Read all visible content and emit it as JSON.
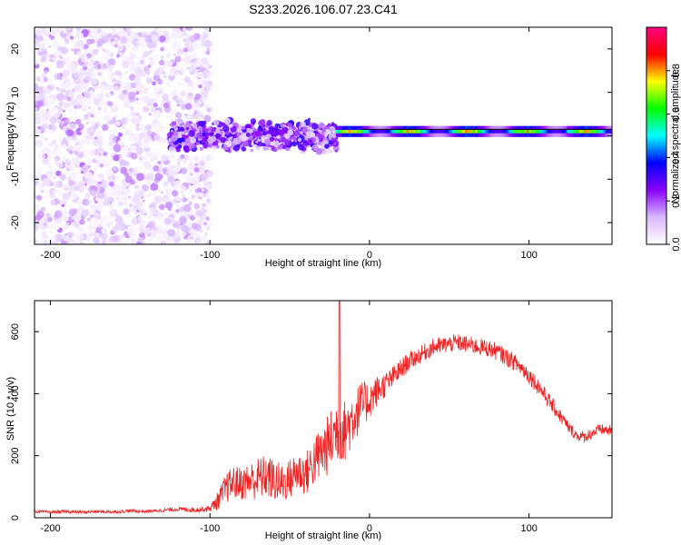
{
  "title": "S233.2026.106.07.23.C41",
  "chart_data": [
    {
      "type": "heatmap",
      "name": "spectrogram",
      "xlabel": "Height of straight line (km)",
      "ylabel": "Frequency (Hz)",
      "xlim": [
        -210,
        152
      ],
      "ylim": [
        -25,
        25
      ],
      "xticks": [
        -200,
        -100,
        0,
        100
      ],
      "yticks": [
        -20,
        -10,
        0,
        10,
        20
      ],
      "colorbar": {
        "label": "Normalized spectral amplitude",
        "range": [
          0.0,
          1.0
        ],
        "ticks": [
          0.0,
          0.2,
          0.4,
          0.6,
          0.8
        ],
        "tick_labels": [
          "0.0",
          "0.2",
          "0.4",
          "0.6",
          "0.8"
        ],
        "colormap": [
          "#ffffff",
          "#d9b8ff",
          "#8b00ff",
          "#0000ff",
          "#00ffff",
          "#00ff00",
          "#ffff00",
          "#ff0000",
          "#ff0080"
        ]
      },
      "features": [
        {
          "description": "scattered noise speckle",
          "x_range": [
            -210,
            -100
          ],
          "freq_range": [
            -25,
            25
          ],
          "amplitude_range": [
            0.0,
            0.1
          ]
        },
        {
          "description": "speckle plus signal onset",
          "x_range": [
            -125,
            -20
          ],
          "freq_range": [
            -7,
            6
          ],
          "amplitude_range": [
            0.05,
            0.35
          ]
        },
        {
          "description": "narrow ridge",
          "x_range": [
            -20,
            152
          ],
          "freq_center": 1.0,
          "freq_halfwidth": 1.0,
          "amplitude_range": [
            0.3,
            0.85
          ]
        }
      ],
      "reference_line": {
        "x_range": [
          -5,
          152
        ],
        "freq": 1.5
      }
    },
    {
      "type": "line",
      "name": "snr",
      "xlabel": "Height of straight line (km)",
      "ylabel": "SNR (10 * v/v)",
      "xlim": [
        -210,
        152
      ],
      "ylim": [
        0,
        700
      ],
      "xticks": [
        -200,
        -100,
        0,
        100
      ],
      "yticks": [
        0,
        200,
        400,
        600
      ],
      "color": "#ee2222",
      "series": [
        {
          "name": "SNR",
          "x": [
            -210,
            -200,
            -190,
            -180,
            -170,
            -160,
            -150,
            -140,
            -130,
            -120,
            -110,
            -100,
            -95,
            -90,
            -85,
            -80,
            -75,
            -70,
            -65,
            -60,
            -55,
            -50,
            -45,
            -40,
            -35,
            -30,
            -25,
            -20,
            -15,
            -10,
            -5,
            0,
            5,
            10,
            15,
            20,
            25,
            30,
            35,
            40,
            45,
            50,
            55,
            60,
            65,
            70,
            75,
            80,
            85,
            90,
            95,
            100,
            105,
            110,
            115,
            120,
            125,
            130,
            135,
            140,
            145,
            152
          ],
          "y": [
            20,
            18,
            20,
            18,
            20,
            19,
            22,
            20,
            24,
            28,
            25,
            30,
            55,
            95,
            115,
            110,
            120,
            125,
            135,
            120,
            110,
            125,
            150,
            140,
            180,
            210,
            240,
            290,
            280,
            330,
            360,
            380,
            410,
            430,
            455,
            480,
            505,
            520,
            535,
            550,
            555,
            560,
            565,
            560,
            555,
            550,
            545,
            535,
            520,
            505,
            485,
            460,
            430,
            395,
            360,
            325,
            290,
            265,
            260,
            275,
            285,
            280
          ],
          "noise": [
            5,
            5,
            5,
            5,
            5,
            5,
            5,
            5,
            6,
            7,
            8,
            10,
            30,
            50,
            55,
            55,
            60,
            70,
            70,
            70,
            65,
            65,
            70,
            70,
            80,
            90,
            100,
            110,
            100,
            90,
            80,
            60,
            50,
            40,
            35,
            35,
            30,
            28,
            28,
            28,
            28,
            28,
            28,
            28,
            28,
            28,
            28,
            28,
            28,
            28,
            28,
            28,
            28,
            25,
            25,
            22,
            20,
            18,
            18,
            18,
            18,
            18
          ]
        }
      ],
      "annotations": [
        {
          "x": -19,
          "y": 700,
          "description": "narrow spike to top of axis"
        }
      ]
    }
  ]
}
